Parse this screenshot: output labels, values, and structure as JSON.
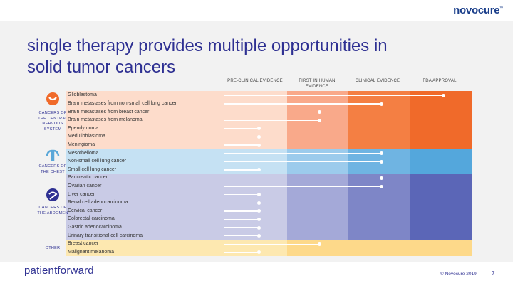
{
  "header": {
    "logo": "novocure"
  },
  "title": "single therapy provides multiple opportunities in solid tumor cancers",
  "columns": [
    "PRE-CLINICAL EVIDENCE",
    "FIRST IN HUMAN EVIDENCE",
    "CLINICAL EVIDENCE",
    "FDA APPROVAL"
  ],
  "categories": [
    {
      "label": "CANCERS OF THE CENTRAL NERVOUS SYSTEM",
      "icon": "brain-icon"
    },
    {
      "label": "CANCERS OF THE CHEST",
      "icon": "lungs-icon"
    },
    {
      "label": "CANCERS OF THE ABDOMEN",
      "icon": "abdomen-icon"
    },
    {
      "label": "OTHER",
      "icon": ""
    }
  ],
  "rows": [
    {
      "label": "Glioblastoma",
      "group": 0,
      "stage": 4
    },
    {
      "label": "Brain metastases from non-small cell lung cancer",
      "group": 0,
      "stage": 3
    },
    {
      "label": "Brain metastases from breast cancer",
      "group": 0,
      "stage": 2
    },
    {
      "label": "Brain metastases from melanoma",
      "group": 0,
      "stage": 2
    },
    {
      "label": "Ependymoma",
      "group": 0,
      "stage": 1
    },
    {
      "label": "Medulloblastoma",
      "group": 0,
      "stage": 1
    },
    {
      "label": "Meningioma",
      "group": 0,
      "stage": 1
    },
    {
      "label": "Mesothelioma",
      "group": 1,
      "stage": 3
    },
    {
      "label": "Non-small cell lung cancer",
      "group": 1,
      "stage": 3
    },
    {
      "label": "Small cell lung cancer",
      "group": 1,
      "stage": 1
    },
    {
      "label": "Pancreatic cancer",
      "group": 2,
      "stage": 3
    },
    {
      "label": "Ovarian cancer",
      "group": 2,
      "stage": 3
    },
    {
      "label": "Liver cancer",
      "group": 2,
      "stage": 1
    },
    {
      "label": "Renal cell adenocarcinoma",
      "group": 2,
      "stage": 1
    },
    {
      "label": "Cervical cancer",
      "group": 2,
      "stage": 1
    },
    {
      "label": "Colorectal carcinoma",
      "group": 2,
      "stage": 1
    },
    {
      "label": "Gastric adenocarcinoma",
      "group": 2,
      "stage": 1
    },
    {
      "label": "Urinary transitional cell carcinoma",
      "group": 2,
      "stage": 1
    },
    {
      "label": "Breast cancer",
      "group": 3,
      "stage": 2
    },
    {
      "label": "Malignant melanoma",
      "group": 3,
      "stage": 1
    }
  ],
  "colors": {
    "cns": [
      "#fddccb",
      "#f9a98a",
      "#f47f43",
      "#f06a2a"
    ],
    "chest": [
      "#c5e1f3",
      "#9ccbec",
      "#6fb4e2",
      "#54a7dc"
    ],
    "abdomen": [
      "#c9cbe6",
      "#a4a9d8",
      "#7e86c7",
      "#5b66b7"
    ],
    "other": [
      "#fde8b0",
      "#fdd98a",
      "#fdd98a",
      "#fdd98a"
    ]
  },
  "footer": {
    "brand": "patientforward",
    "copyright": "© Novocure 2019",
    "page": "7"
  }
}
